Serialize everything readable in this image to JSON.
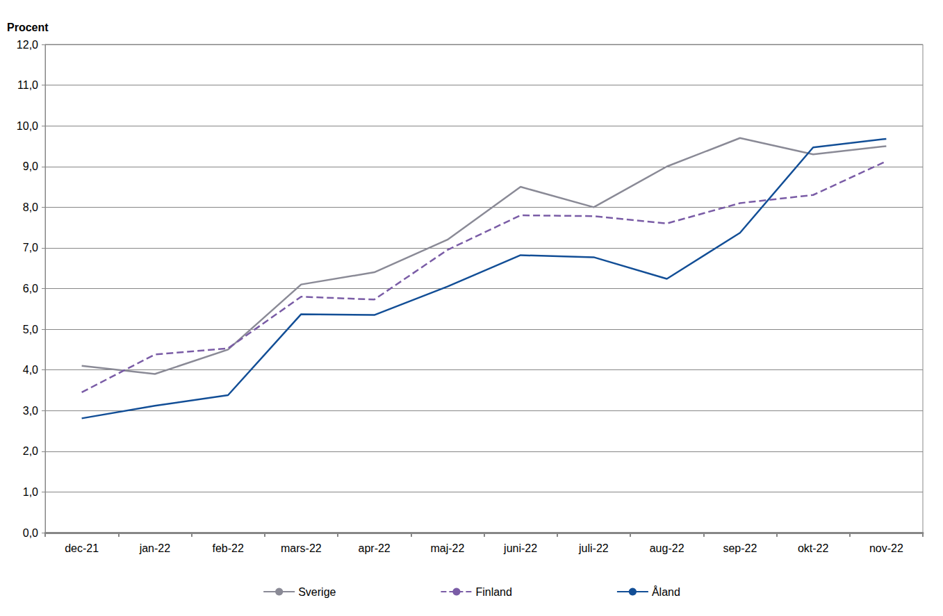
{
  "chart_data": {
    "type": "line",
    "y_label": "Procent",
    "categories": [
      "dec-21",
      "jan-22",
      "feb-22",
      "mars-22",
      "apr-22",
      "maj-22",
      "juni-22",
      "juli-22",
      "aug-22",
      "sep-22",
      "okt-22",
      "nov-22"
    ],
    "series": [
      {
        "name": "Sverige",
        "color": "#8a8a96",
        "line_style": "solid",
        "values": [
          4.1,
          3.9,
          4.5,
          6.1,
          6.4,
          7.2,
          8.5,
          8.0,
          9.0,
          9.7,
          9.3,
          9.5
        ]
      },
      {
        "name": "Finland",
        "color": "#7a5ca6",
        "line_style": "dashed",
        "values": [
          3.45,
          4.38,
          4.53,
          5.8,
          5.73,
          6.95,
          7.8,
          7.78,
          7.6,
          8.1,
          8.3,
          9.13
        ]
      },
      {
        "name": "Åland",
        "color": "#124e96",
        "line_style": "solid",
        "values": [
          2.81,
          3.12,
          3.38,
          5.37,
          5.35,
          6.05,
          6.82,
          6.77,
          6.24,
          7.37,
          9.47,
          9.68
        ]
      }
    ],
    "ylim": [
      0,
      12
    ],
    "yticks": [
      {
        "value": 0,
        "label": "0,0"
      },
      {
        "value": 1,
        "label": "1,0"
      },
      {
        "value": 2,
        "label": "2,0"
      },
      {
        "value": 3,
        "label": "3,0"
      },
      {
        "value": 4,
        "label": "4,0"
      },
      {
        "value": 5,
        "label": "5,0"
      },
      {
        "value": 6,
        "label": "6,0"
      },
      {
        "value": 7,
        "label": "7,0"
      },
      {
        "value": 8,
        "label": "8,0"
      },
      {
        "value": 9,
        "label": "9,0"
      },
      {
        "value": 10,
        "label": "10,0"
      },
      {
        "value": 11,
        "label": "11,0"
      },
      {
        "value": 12,
        "label": "12,0"
      }
    ],
    "grid": true,
    "legend": "bottom"
  }
}
